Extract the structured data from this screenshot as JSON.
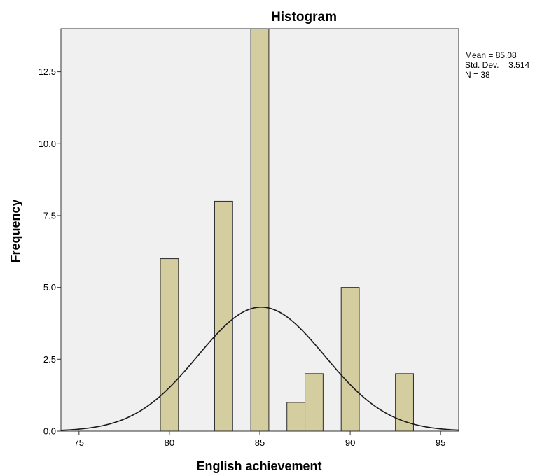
{
  "chart_data": {
    "type": "bar",
    "title": "Histogram",
    "xlabel": "English achievement",
    "ylabel": "Frequency",
    "xlim": [
      74,
      96
    ],
    "ylim": [
      0,
      14
    ],
    "x_ticks": [
      "75",
      "80",
      "85",
      "90",
      "95"
    ],
    "y_ticks": [
      "0.0",
      "2.5",
      "5.0",
      "7.5",
      "10.0",
      "12.5"
    ],
    "bins": [
      {
        "x0": 79.5,
        "x1": 80.5,
        "count": 6
      },
      {
        "x0": 82.5,
        "x1": 83.5,
        "count": 8
      },
      {
        "x0": 84.5,
        "x1": 85.5,
        "count": 14
      },
      {
        "x0": 86.5,
        "x1": 87.5,
        "count": 1
      },
      {
        "x0": 87.5,
        "x1": 88.5,
        "count": 2
      },
      {
        "x0": 89.5,
        "x1": 90.5,
        "count": 5
      },
      {
        "x0": 92.5,
        "x1": 93.5,
        "count": 2
      }
    ],
    "normal_curve": {
      "mean": 85.08,
      "std_dev": 3.514,
      "n": 38,
      "bin_width": 1
    },
    "stats_lines": [
      "Mean = 85.08",
      "Std. Dev. = 3.514",
      "N = 38"
    ],
    "grid": false,
    "legend_placement": "top-right",
    "colors": {
      "bar_fill": "#d3cd9f",
      "bar_stroke": "#2b2b2b",
      "plot_bg": "#f0f0f0",
      "curve": "#1a1a1a"
    }
  }
}
